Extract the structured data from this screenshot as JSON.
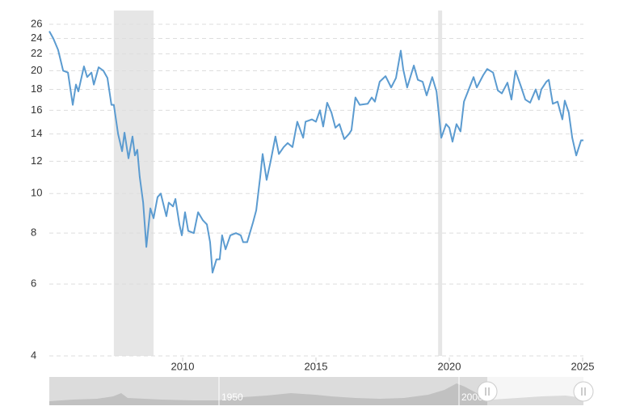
{
  "chart_data": {
    "type": "line",
    "log_scale": true,
    "grid": true,
    "xlim": [
      2005,
      2025.03
    ],
    "xticks": [
      2010,
      2015,
      2020,
      2025
    ],
    "ylim": [
      4,
      26
    ],
    "yticks": [
      4,
      6,
      8,
      10,
      12,
      14,
      16,
      18,
      20,
      22,
      24,
      26
    ],
    "shaded_ranges": [
      [
        2007.42,
        2008.91
      ],
      [
        2019.58,
        2019.73
      ]
    ],
    "shade_color": "#e6e6e6",
    "navigator_labels": [
      "1950",
      "2000"
    ],
    "x": [
      2005.0,
      2005.15,
      2005.33,
      2005.52,
      2005.7,
      2005.88,
      2006.0,
      2006.09,
      2006.3,
      2006.42,
      2006.58,
      2006.67,
      2006.85,
      2007.03,
      2007.18,
      2007.33,
      2007.42,
      2007.58,
      2007.73,
      2007.82,
      2007.97,
      2008.12,
      2008.21,
      2008.3,
      2008.39,
      2008.52,
      2008.64,
      2008.79,
      2008.91,
      2009.06,
      2009.18,
      2009.39,
      2009.48,
      2009.64,
      2009.73,
      2009.88,
      2009.97,
      2010.09,
      2010.21,
      2010.42,
      2010.58,
      2010.76,
      2010.91,
      2011.03,
      2011.12,
      2011.27,
      2011.39,
      2011.48,
      2011.61,
      2011.79,
      2012.0,
      2012.18,
      2012.27,
      2012.42,
      2012.64,
      2012.76,
      2012.91,
      2013.0,
      2013.15,
      2013.3,
      2013.48,
      2013.61,
      2013.79,
      2013.94,
      2014.12,
      2014.3,
      2014.52,
      2014.61,
      2014.85,
      2015.0,
      2015.15,
      2015.27,
      2015.42,
      2015.58,
      2015.73,
      2015.88,
      2016.06,
      2016.24,
      2016.33,
      2016.48,
      2016.64,
      2016.94,
      2017.09,
      2017.21,
      2017.39,
      2017.61,
      2017.82,
      2018.0,
      2018.18,
      2018.27,
      2018.42,
      2018.67,
      2018.82,
      2019.0,
      2019.15,
      2019.36,
      2019.52,
      2019.7,
      2019.88,
      2020.0,
      2020.12,
      2020.27,
      2020.42,
      2020.55,
      2020.73,
      2020.91,
      2021.03,
      2021.27,
      2021.42,
      2021.64,
      2021.82,
      2021.97,
      2022.18,
      2022.33,
      2022.48,
      2022.7,
      2022.85,
      2023.03,
      2023.24,
      2023.36,
      2023.45,
      2023.64,
      2023.73,
      2023.88,
      2024.06,
      2024.24,
      2024.33,
      2024.48,
      2024.61,
      2024.76,
      2024.94,
      2025.03
    ],
    "series": [
      {
        "color": "#5b9bd0",
        "values": [
          25,
          24,
          22.5,
          20,
          19.8,
          16.5,
          18.5,
          17.8,
          20.5,
          19.3,
          19.8,
          18.5,
          20.4,
          20,
          19.2,
          16.5,
          16.5,
          14,
          12.7,
          14.1,
          12.2,
          13.8,
          12.4,
          12.8,
          11,
          9.5,
          7.4,
          9.2,
          8.7,
          9.8,
          10,
          8.8,
          9.5,
          9.3,
          9.7,
          8.4,
          7.9,
          9,
          8.1,
          8,
          9,
          8.6,
          8.4,
          7.6,
          6.4,
          6.9,
          6.9,
          7.9,
          7.3,
          7.9,
          8,
          7.9,
          7.6,
          7.6,
          8.5,
          9.1,
          11,
          12.5,
          10.8,
          12,
          13.8,
          12.5,
          13,
          13.3,
          13,
          15,
          13.7,
          15,
          15.2,
          15,
          16,
          14.6,
          16.7,
          15.8,
          14.5,
          14.8,
          13.6,
          14,
          14.3,
          17.2,
          16.5,
          16.6,
          17.2,
          16.8,
          18.8,
          19.4,
          18.2,
          19.2,
          22.4,
          20.2,
          18.2,
          20.6,
          19,
          18.8,
          17.4,
          19.3,
          17.8,
          13.7,
          14.8,
          14.5,
          13.4,
          14.8,
          14.2,
          16.8,
          18,
          19.3,
          18.2,
          19.5,
          20.2,
          19.8,
          17.9,
          17.6,
          18.7,
          17,
          20,
          18.2,
          17,
          16.7,
          18,
          17,
          18,
          18.8,
          19,
          16.6,
          16.8,
          15.2,
          16.9,
          15.8,
          13.7,
          12.4,
          13.5,
          13.5
        ]
      }
    ]
  }
}
